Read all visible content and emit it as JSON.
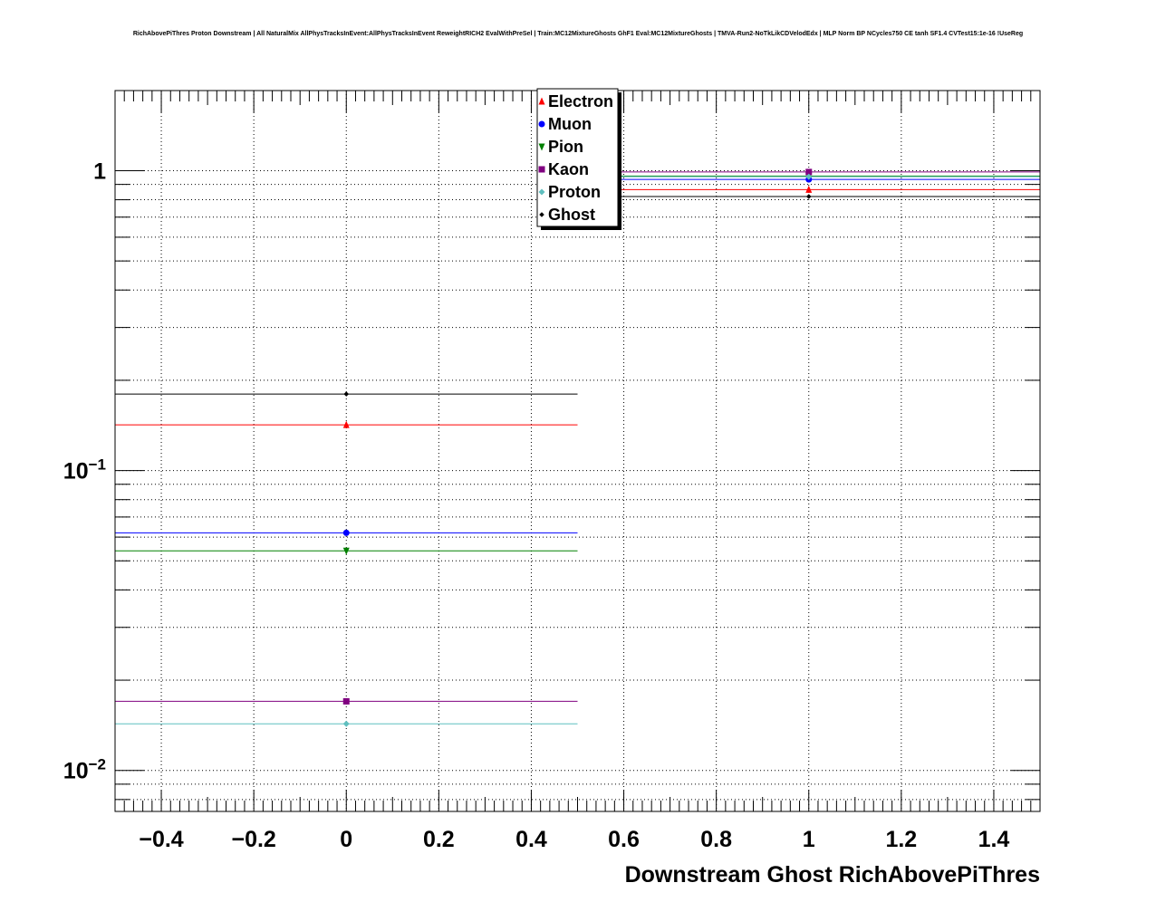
{
  "chart_data": {
    "type": "scatter",
    "title": "RichAbovePiThres Proton Downstream | All NaturalMix AllPhysTracksInEvent:AllPhysTracksInEvent ReweightRICH2 EvalWithPreSel | Train:MC12MixtureGhosts GhF1 Eval:MC12MixtureGhosts | TMVA-Run2-NoTkLikCDVelodEdx | MLP Norm BP NCycles750 CE tanh SF1.4 CVTest15:1e-16 !UseReg",
    "xlabel": "Downstream Ghost RichAbovePiThres",
    "ylabel": "",
    "xlim": [
      -0.5,
      1.5
    ],
    "ylim": [
      0.0073,
      1.85
    ],
    "yscale": "log",
    "grid": true,
    "legend_position": "top-center",
    "x_ticks": [
      "−0.4",
      "−0.2",
      "0",
      "0.2",
      "0.4",
      "0.6",
      "0.8",
      "1",
      "1.2",
      "1.4"
    ],
    "x_tick_values": [
      -0.4,
      -0.2,
      0,
      0.2,
      0.4,
      0.6,
      0.8,
      1,
      1.2,
      1.4
    ],
    "y_ticks": [
      {
        "value": 1,
        "base": "1",
        "exp": ""
      },
      {
        "value": 0.1,
        "base": "10",
        "exp": "−1"
      },
      {
        "value": 0.01,
        "base": "10",
        "exp": "−2"
      }
    ],
    "x_bins": [
      [
        -0.5,
        0.5
      ],
      [
        0.5,
        1.5
      ]
    ],
    "x_centers": [
      0,
      1
    ],
    "series": [
      {
        "name": "Electron",
        "color": "#ff0000",
        "marker": "triangle-up",
        "values": [
          0.142,
          0.865
        ]
      },
      {
        "name": "Muon",
        "color": "#0000ff",
        "marker": "circle",
        "values": [
          0.062,
          0.935
        ]
      },
      {
        "name": "Pion",
        "color": "#008000",
        "marker": "triangle-down",
        "values": [
          0.054,
          0.96
        ]
      },
      {
        "name": "Kaon",
        "color": "#800080",
        "marker": "square",
        "values": [
          0.017,
          0.99
        ]
      },
      {
        "name": "Proton",
        "color": "#5fbfbf",
        "marker": "diamond",
        "values": [
          0.0143,
          0.955
        ]
      },
      {
        "name": "Ghost",
        "color": "#000000",
        "marker": "diamond-small",
        "values": [
          0.18,
          0.82
        ]
      }
    ]
  }
}
